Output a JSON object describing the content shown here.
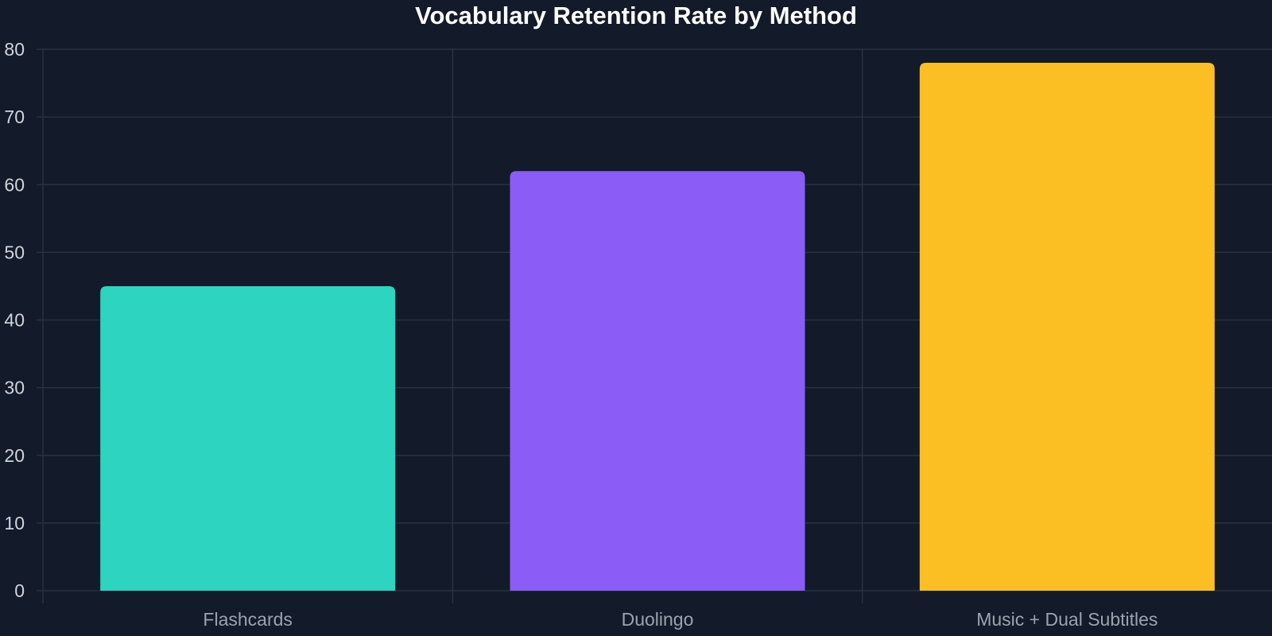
{
  "colors": {
    "background": "#131a29",
    "grid": "#2a3140",
    "axis_text": "#cfd4dc",
    "category_text": "#9ba3b0",
    "title_text": "#ffffff"
  },
  "chart_data": {
    "type": "bar",
    "title": "Vocabulary Retention Rate by Method",
    "xlabel": "",
    "ylabel": "",
    "categories": [
      "Flashcards",
      "Duolingo",
      "Music + Dual Subtitles"
    ],
    "values": [
      45,
      62,
      78
    ],
    "bar_colors": [
      "#2dd4bf",
      "#8b5cf6",
      "#fbbf24"
    ],
    "ylim": [
      0,
      80
    ],
    "yticks": [
      "0",
      "10",
      "20",
      "30",
      "40",
      "50",
      "60",
      "70",
      "80"
    ],
    "grid": true,
    "legend": "none"
  }
}
